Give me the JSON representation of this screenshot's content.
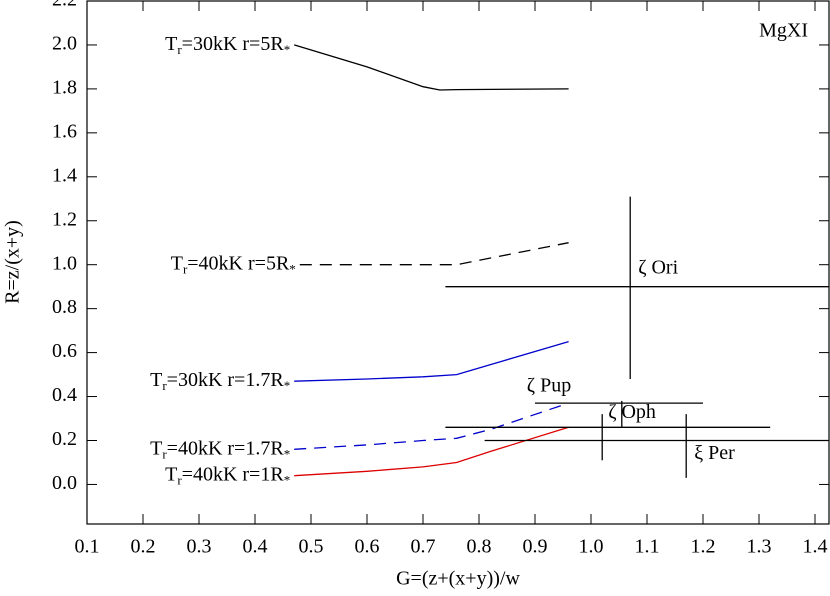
{
  "chart_data": {
    "type": "line",
    "xlabel": "G=(z+(x+y))/w",
    "ylabel": "R=z/(x+y)",
    "annotation": "MgXI",
    "annotation_color": "#1a9a1a",
    "xlim": [
      0.1,
      1.425
    ],
    "ylim": [
      -0.18,
      2.2
    ],
    "xticks": [
      0.1,
      0.2,
      0.3,
      0.4,
      0.5,
      0.6,
      0.7,
      0.8,
      0.9,
      {
        "value": 1,
        "label": "1.0"
      },
      1.1,
      1.2,
      1.3,
      1.4
    ],
    "yticks": [
      {
        "value": 0,
        "label": "0.0"
      },
      0.2,
      0.4,
      0.6,
      0.8,
      {
        "value": 1,
        "label": "1.0"
      },
      1.2,
      1.4,
      1.6,
      1.8,
      {
        "value": 2,
        "label": "2.0"
      },
      2.2
    ],
    "series": [
      {
        "name_parts": [
          {
            "text": "T"
          },
          {
            "text": "r",
            "sub": true
          },
          {
            "text": "=30kK  r=5R"
          },
          {
            "text": "*",
            "sub": true
          }
        ],
        "color": "#000000",
        "dashed": false,
        "x": [
          0.47,
          0.6,
          0.7,
          0.73,
          0.76,
          0.96
        ],
        "values": [
          2.0,
          1.9,
          1.81,
          1.795,
          1.797,
          1.8
        ]
      },
      {
        "name_parts": [
          {
            "text": "T"
          },
          {
            "text": "r",
            "sub": true
          },
          {
            "text": "=40kK  r=5R"
          },
          {
            "text": "*",
            "sub": true
          }
        ],
        "color": "#000000",
        "dashed": true,
        "x": [
          0.48,
          0.7,
          0.76,
          0.8,
          0.96
        ],
        "values": [
          1.0,
          1.0,
          1.0,
          1.02,
          1.1
        ]
      },
      {
        "name_parts": [
          {
            "text": "T"
          },
          {
            "text": "r",
            "sub": true
          },
          {
            "text": "=30kK  r=1.7R"
          },
          {
            "text": "*",
            "sub": true
          }
        ],
        "color": "#0000cc",
        "dashed": false,
        "x": [
          0.47,
          0.6,
          0.7,
          0.76,
          0.8,
          0.96
        ],
        "values": [
          0.47,
          0.48,
          0.49,
          0.5,
          0.53,
          0.65
        ]
      },
      {
        "name_parts": [
          {
            "text": "T"
          },
          {
            "text": "r",
            "sub": true
          },
          {
            "text": "=40kK  r=1.7R"
          },
          {
            "text": "*",
            "sub": true
          }
        ],
        "color": "#0000cc",
        "dashed": true,
        "x": [
          0.47,
          0.6,
          0.7,
          0.76,
          0.82,
          0.96
        ],
        "values": [
          0.16,
          0.18,
          0.2,
          0.21,
          0.25,
          0.37
        ]
      },
      {
        "name_parts": [
          {
            "text": "T"
          },
          {
            "text": "r",
            "sub": true
          },
          {
            "text": "=40kK  r=1R"
          },
          {
            "text": "*",
            "sub": true
          }
        ],
        "color": "#dd0000",
        "dashed": false,
        "x": [
          0.47,
          0.6,
          0.7,
          0.76,
          0.82,
          0.96
        ],
        "values": [
          0.04,
          0.06,
          0.08,
          0.1,
          0.15,
          0.26
        ]
      }
    ],
    "stars": [
      {
        "name": "ζ Ori",
        "x": 1.07,
        "y": 0.9,
        "xmin": 0.74,
        "xmax": 1.425,
        "ymin": 0.48,
        "ymax": 1.31
      },
      {
        "name": "ζ Pup",
        "x": 1.055,
        "y": 0.37,
        "xmin": 0.9,
        "xmax": 1.2,
        "ymin": 0.26,
        "ymax": 0.38
      },
      {
        "name": "ζ Oph",
        "x": 1.02,
        "y": 0.26,
        "xmin": 0.74,
        "xmax": 1.32,
        "ymin": 0.11,
        "ymax": 0.32
      },
      {
        "name": "ξ Per",
        "x": 1.17,
        "y": 0.2,
        "xmin": 0.81,
        "xmax": 1.425,
        "ymin": 0.03,
        "ymax": 0.32
      }
    ]
  }
}
